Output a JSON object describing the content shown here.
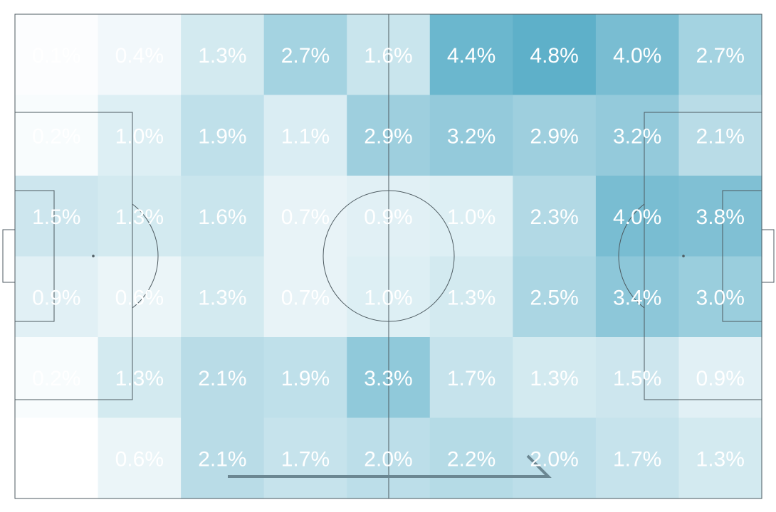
{
  "chart_data": {
    "type": "heatmap",
    "subject": "football pitch zone heatmap",
    "rows": 6,
    "cols": 9,
    "color_low": "#ffffff",
    "color_high": "#5eb0c9",
    "value_max": 4.8,
    "attack_direction": "left-to-right",
    "values": [
      [
        0.1,
        0.4,
        1.3,
        2.7,
        1.6,
        4.4,
        4.8,
        4.0,
        2.7
      ],
      [
        0.2,
        1.0,
        1.9,
        1.1,
        2.9,
        3.2,
        2.9,
        3.2,
        2.1
      ],
      [
        1.5,
        1.3,
        1.6,
        0.7,
        0.9,
        1.0,
        2.3,
        4.0,
        3.8
      ],
      [
        0.9,
        0.6,
        1.3,
        0.7,
        1.0,
        1.3,
        2.5,
        3.4,
        3.0
      ],
      [
        0.2,
        1.3,
        2.1,
        1.9,
        3.3,
        1.7,
        1.3,
        1.5,
        0.9
      ],
      [
        null,
        0.6,
        2.1,
        1.7,
        2.0,
        2.2,
        2.0,
        1.7,
        1.3
      ]
    ],
    "labels": [
      [
        "0.1%",
        "0.4%",
        "1.3%",
        "2.7%",
        "1.6%",
        "4.4%",
        "4.8%",
        "4.0%",
        "2.7%"
      ],
      [
        "0.2%",
        "1.0%",
        "1.9%",
        "1.1%",
        "2.9%",
        "3.2%",
        "2.9%",
        "3.2%",
        "2.1%"
      ],
      [
        "1.5%",
        "1.3%",
        "1.6%",
        "0.7%",
        "0.9%",
        "1.0%",
        "2.3%",
        "4.0%",
        "3.8%"
      ],
      [
        "0.9%",
        "0.6%",
        "1.3%",
        "0.7%",
        "1.0%",
        "1.3%",
        "2.5%",
        "3.4%",
        "3.0%"
      ],
      [
        "0.2%",
        "1.3%",
        "2.1%",
        "1.9%",
        "3.3%",
        "1.7%",
        "1.3%",
        "1.5%",
        "0.9%"
      ],
      [
        "",
        "0.6%",
        "2.1%",
        "1.7%",
        "2.0%",
        "2.2%",
        "2.0%",
        "1.7%",
        "1.3%"
      ]
    ],
    "pitch_line_color": "#4d5a60",
    "arrow_color": "#6b8792",
    "label_color": "#ffffff"
  }
}
